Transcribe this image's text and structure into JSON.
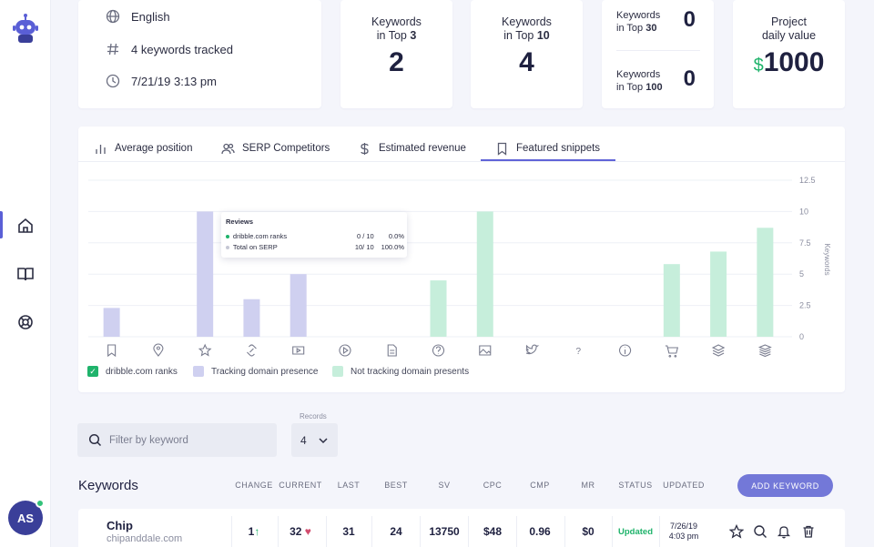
{
  "info": {
    "language": "English",
    "keywords_tracked": "4 keywords tracked",
    "datetime": "7/21/19 3:13 pm"
  },
  "stats": {
    "top3": {
      "label_line1": "Keywords",
      "label_pre": "in Top ",
      "label_bold": "3",
      "value": "2"
    },
    "top10": {
      "label_line1": "Keywords",
      "label_pre": "in Top ",
      "label_bold": "10",
      "value": "4"
    },
    "top30": {
      "label_line1": "Keywords",
      "label_pre": "in Top ",
      "label_bold": "30",
      "value": "0"
    },
    "top100": {
      "label_line1": "Keywords",
      "label_pre": "in Top ",
      "label_bold": "100",
      "value": "0"
    },
    "project": {
      "label_line1": "Project",
      "label_line2": "daily value",
      "currency": "$",
      "value": "1000",
      "currency_color": "#1fb36b"
    }
  },
  "tabs": [
    {
      "label": "Average position",
      "icon": "bar-chart-icon"
    },
    {
      "label": "SERP Competitors",
      "icon": "users-icon"
    },
    {
      "label": "Estimated revenue",
      "icon": "dollar-icon"
    },
    {
      "label": "Featured snippets",
      "icon": "bookmark-icon",
      "active": true
    }
  ],
  "chart_data": {
    "type": "bar",
    "categories": [
      "bookmark",
      "location",
      "star",
      "link",
      "video",
      "play",
      "document",
      "question",
      "image",
      "twitter",
      "help",
      "info",
      "cart",
      "layers",
      "stack"
    ],
    "series": [
      {
        "name": "dribble.com ranks",
        "values": [
          0,
          0,
          0,
          0,
          0,
          0,
          0,
          0,
          0,
          0,
          0,
          0,
          0,
          0,
          0
        ],
        "color": "#1fb36b"
      },
      {
        "name": "Tracking domain presence",
        "values": [
          2.3,
          0,
          10,
          3,
          5,
          0,
          0,
          0,
          0,
          0,
          0,
          0,
          0,
          0,
          0
        ],
        "color": "#cfd0f0"
      },
      {
        "name": "Not tracking domain presents",
        "values": [
          0,
          0,
          0,
          0,
          0,
          0,
          0,
          4.5,
          10,
          0,
          0,
          0,
          5.8,
          6.8,
          8.7
        ],
        "color": "#c6eedb"
      }
    ],
    "ylabel": "Keywords",
    "ylim": [
      0,
      12.5
    ],
    "yticks": [
      "0",
      "2.5",
      "5",
      "7.5",
      "10",
      "12.5"
    ],
    "grid": true,
    "legend": "bottom-left"
  },
  "tooltip": {
    "title": "Reviews",
    "rows": [
      {
        "name": "dribble.com ranks",
        "value": "0 / 10",
        "pct": "0.0%",
        "color": "#1fb36b"
      },
      {
        "name": "Total on SERP",
        "value": "10/ 10",
        "pct": "100.0%",
        "color": "#c5c7d4"
      }
    ]
  },
  "filter": {
    "placeholder": "Filter by keyword"
  },
  "records": {
    "label": "Records",
    "value": "4"
  },
  "table": {
    "title": "Keywords",
    "columns": [
      "CHANGE",
      "CURRENT",
      "LAST",
      "BEST",
      "SV",
      "CPC",
      "CMP",
      "MR",
      "STATUS",
      "UPDATED"
    ],
    "add_button": "ADD KEYWORD",
    "rows": [
      {
        "keyword": "Chip",
        "domain": "chipanddale.com",
        "change": "1",
        "current": "32",
        "last": "31",
        "best": "24",
        "sv": "13750",
        "cpc": "$48",
        "cmp": "0.96",
        "mr": "$0",
        "status": "Updated",
        "updated_date": "7/26/19",
        "updated_time": "4:03 pm"
      }
    ]
  },
  "user": {
    "initials": "AS"
  }
}
